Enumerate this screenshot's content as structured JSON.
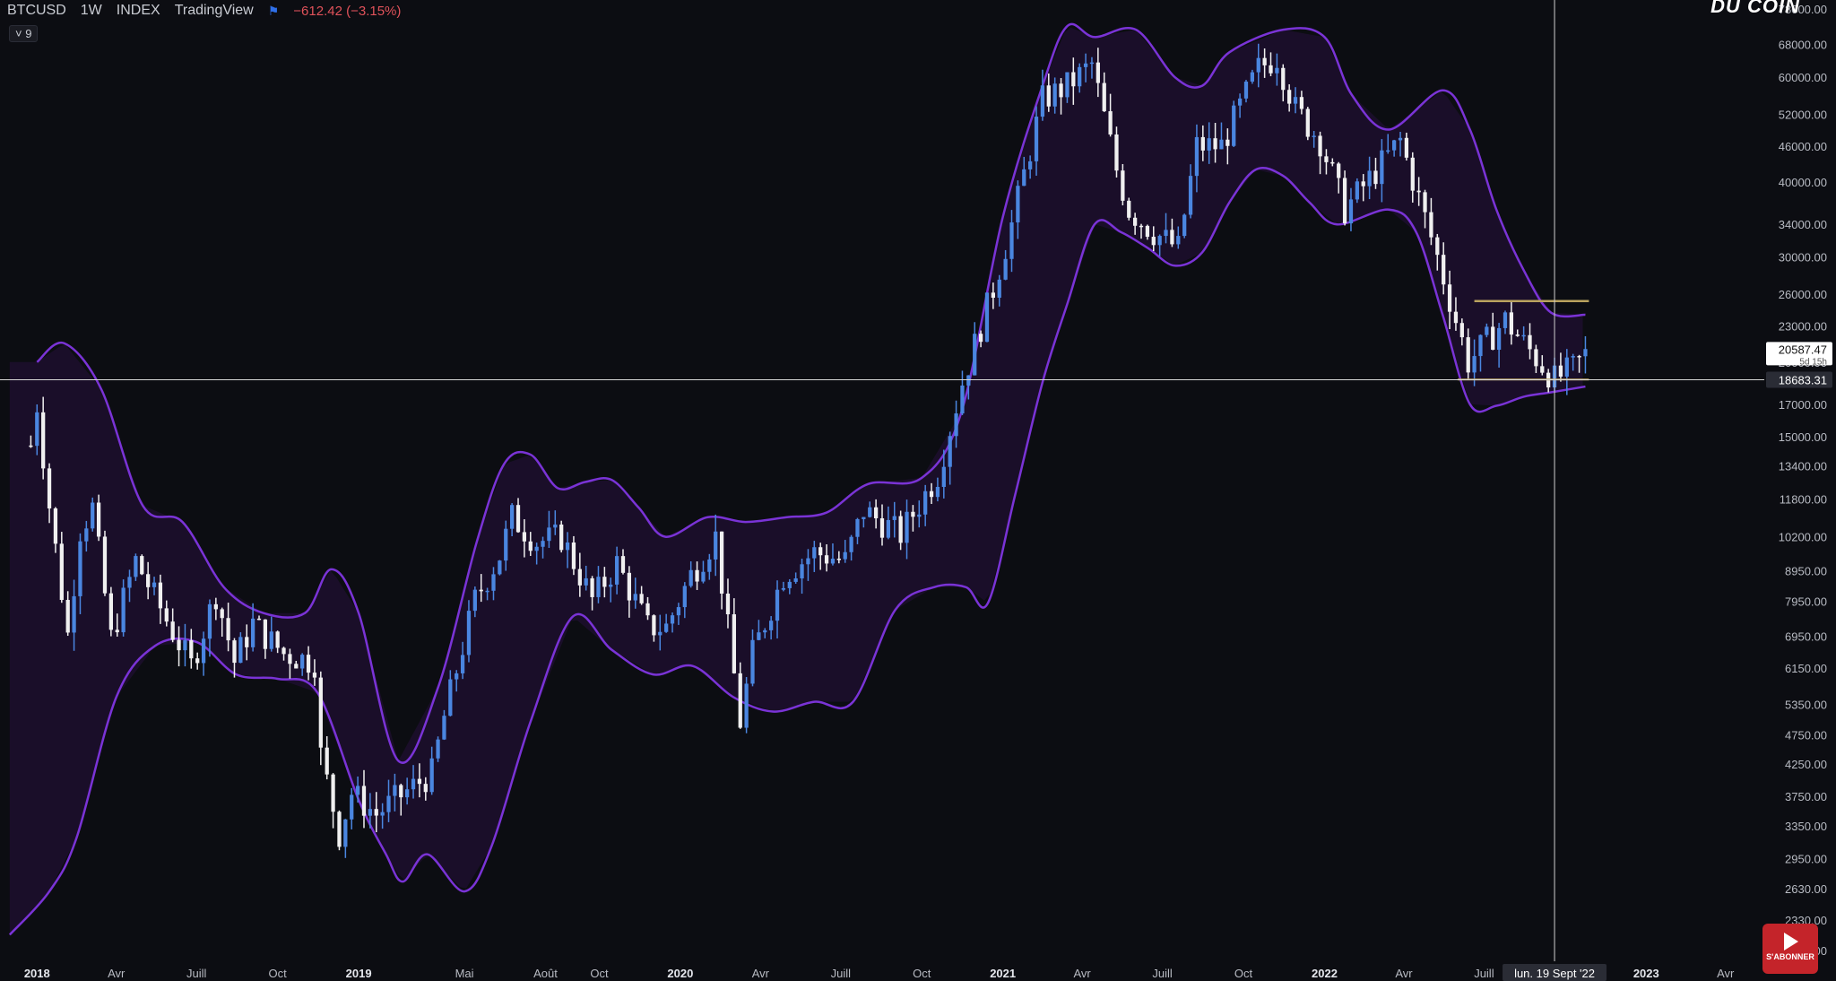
{
  "header": {
    "symbol": "BTCUSD",
    "interval": "1W",
    "exchange": "INDEX",
    "source": "TradingView",
    "change": "−612.42 (−3.15%)",
    "indicator_badge": "˅ 9"
  },
  "brand": "DU COIN",
  "youtube": {
    "label": "S'ABONNER"
  },
  "colors": {
    "background": "#0c0d12",
    "bull_candle": "#4a86e0",
    "bear_candle": "#f0f0f0",
    "band_line": "#7a33d6",
    "band_fill": "#1d0f2e",
    "horizontal_line": "#d8d8d8",
    "box_line": "#b9a25e"
  },
  "chart_data": {
    "type": "candlestick",
    "title": "BTCUSD 1W INDEX TradingView",
    "interval": "1W",
    "y_scale": "log",
    "ylim": [
      2000,
      78000
    ],
    "y_ticks": [
      "78000.00",
      "68000.00",
      "60000.00",
      "52000.00",
      "46000.00",
      "40000.00",
      "34000.00",
      "30000.00",
      "26000.00",
      "23000.00",
      "20000.00",
      "17000.00",
      "15000.00",
      "13400.00",
      "11800.00",
      "10200.00",
      "8950.00",
      "7950.00",
      "6950.00",
      "6150.00",
      "5350.00",
      "4750.00",
      "4250.00",
      "3750.00",
      "3350.00",
      "2950.00",
      "2630.00",
      "2330.00",
      "2070.00"
    ],
    "x_ticks": [
      "2018",
      "Avr",
      "Juill",
      "Oct",
      "2019",
      "Mai",
      "Août",
      "Oct",
      "2020",
      "Avr",
      "Juill",
      "Oct",
      "2021",
      "Avr",
      "Juill",
      "Oct",
      "2022",
      "Avr",
      "Juill",
      "2023",
      "Avr"
    ],
    "crosshair_date": "lun. 19 Sept '22",
    "last_price": "20587.47",
    "last_price_sub": "5d 15h",
    "crosshair_price": "18683.31",
    "horizontal_line_value": 18683.31,
    "box": {
      "top": 25300,
      "bottom": 18700,
      "from": "2022-06",
      "to": "2022-10"
    },
    "close_path": [
      [
        "2017-12-25",
        14500
      ],
      [
        "2018-01-01",
        17000
      ],
      [
        "2018-01-15",
        11500
      ],
      [
        "2018-02-05",
        7000
      ],
      [
        "2018-02-19",
        10500
      ],
      [
        "2018-03-05",
        11400
      ],
      [
        "2018-03-26",
        6900
      ],
      [
        "2018-04-23",
        9300
      ],
      [
        "2018-05-28",
        7400
      ],
      [
        "2018-06-25",
        6200
      ],
      [
        "2018-07-23",
        8200
      ],
      [
        "2018-08-13",
        6300
      ],
      [
        "2018-09-03",
        7300
      ],
      [
        "2018-10-08",
        6500
      ],
      [
        "2018-11-12",
        6300
      ],
      [
        "2018-11-19",
        4400
      ],
      [
        "2018-12-10",
        3250
      ],
      [
        "2018-12-24",
        3800
      ],
      [
        "2019-01-21",
        3500
      ],
      [
        "2019-02-11",
        3700
      ],
      [
        "2019-03-25",
        4100
      ],
      [
        "2019-04-08",
        5100
      ],
      [
        "2019-05-13",
        8000
      ],
      [
        "2019-06-10",
        9500
      ],
      [
        "2019-06-24",
        11000
      ],
      [
        "2019-07-22",
        10000
      ],
      [
        "2019-08-19",
        10200
      ],
      [
        "2019-09-23",
        8000
      ],
      [
        "2019-10-21",
        9200
      ],
      [
        "2019-11-25",
        7200
      ],
      [
        "2019-12-16",
        7200
      ],
      [
        "2020-01-13",
        8800
      ],
      [
        "2020-02-10",
        10200
      ],
      [
        "2020-03-09",
        5000
      ],
      [
        "2020-03-23",
        6500
      ],
      [
        "2020-04-27",
        8800
      ],
      [
        "2020-06-01",
        9600
      ],
      [
        "2020-07-06",
        9300
      ],
      [
        "2020-07-27",
        11300
      ],
      [
        "2020-09-07",
        10300
      ],
      [
        "2020-10-19",
        13000
      ],
      [
        "2020-11-16",
        18500
      ],
      [
        "2020-12-21",
        26500
      ],
      [
        "2021-01-11",
        34000
      ],
      [
        "2021-02-15",
        55000
      ],
      [
        "2021-03-15",
        58000
      ],
      [
        "2021-04-12",
        63000
      ],
      [
        "2021-05-10",
        42000
      ],
      [
        "2021-05-24",
        36000
      ],
      [
        "2021-06-21",
        33000
      ],
      [
        "2021-07-19",
        31000
      ],
      [
        "2021-08-09",
        46000
      ],
      [
        "2021-09-06",
        46000
      ],
      [
        "2021-10-18",
        62000
      ],
      [
        "2021-11-08",
        65000
      ],
      [
        "2021-11-29",
        53000
      ],
      [
        "2021-12-27",
        47000
      ],
      [
        "2022-01-24",
        36000
      ],
      [
        "2022-03-28",
        47000
      ],
      [
        "2022-05-09",
        30000
      ],
      [
        "2022-06-13",
        20000
      ],
      [
        "2022-07-25",
        23500
      ],
      [
        "2022-08-15",
        21500
      ],
      [
        "2022-09-19",
        18700
      ],
      [
        "2022-10-10",
        19500
      ],
      [
        "2022-10-24",
        20587.47
      ]
    ],
    "upper_band": [
      [
        "2018-01-01",
        20000
      ],
      [
        "2018-02-01",
        21500
      ],
      [
        "2018-03-15",
        18000
      ],
      [
        "2018-05-01",
        11500
      ],
      [
        "2018-06-15",
        10800
      ],
      [
        "2018-08-01",
        8400
      ],
      [
        "2018-09-15",
        7600
      ],
      [
        "2018-11-01",
        7600
      ],
      [
        "2018-12-01",
        9000
      ],
      [
        "2019-01-01",
        7600
      ],
      [
        "2019-02-15",
        4300
      ],
      [
        "2019-04-01",
        5700
      ],
      [
        "2019-05-15",
        10000
      ],
      [
        "2019-06-15",
        13500
      ],
      [
        "2019-07-15",
        14000
      ],
      [
        "2019-08-15",
        12300
      ],
      [
        "2019-09-15",
        12600
      ],
      [
        "2019-10-15",
        12700
      ],
      [
        "2019-11-15",
        11400
      ],
      [
        "2019-12-15",
        10200
      ],
      [
        "2020-02-01",
        11000
      ],
      [
        "2020-03-15",
        10800
      ],
      [
        "2020-05-01",
        11000
      ],
      [
        "2020-06-15",
        11200
      ],
      [
        "2020-08-01",
        12500
      ],
      [
        "2020-10-01",
        12800
      ],
      [
        "2020-11-15",
        16500
      ],
      [
        "2021-01-01",
        35000
      ],
      [
        "2021-02-15",
        58000
      ],
      [
        "2021-03-15",
        73000
      ],
      [
        "2021-04-15",
        70000
      ],
      [
        "2021-06-01",
        72000
      ],
      [
        "2021-07-15",
        60000
      ],
      [
        "2021-08-15",
        58000
      ],
      [
        "2021-09-15",
        66000
      ],
      [
        "2021-11-15",
        72000
      ],
      [
        "2022-01-01",
        70000
      ],
      [
        "2022-02-01",
        56000
      ],
      [
        "2022-03-15",
        49000
      ],
      [
        "2022-05-15",
        57000
      ],
      [
        "2022-06-15",
        49000
      ],
      [
        "2022-07-15",
        36000
      ],
      [
        "2022-08-15",
        28500
      ],
      [
        "2022-09-15",
        24200
      ],
      [
        "2022-10-24",
        24000
      ]
    ],
    "lower_band": [
      [
        "2017-12-01",
        2200
      ],
      [
        "2018-01-15",
        2600
      ],
      [
        "2018-02-15",
        3200
      ],
      [
        "2018-04-01",
        5500
      ],
      [
        "2018-05-15",
        6700
      ],
      [
        "2018-07-01",
        6800
      ],
      [
        "2018-08-15",
        6000
      ],
      [
        "2018-10-01",
        5900
      ],
      [
        "2018-11-15",
        5600
      ],
      [
        "2019-01-01",
        3700
      ],
      [
        "2019-02-01",
        3000
      ],
      [
        "2019-02-20",
        2700
      ],
      [
        "2019-03-20",
        3000
      ],
      [
        "2019-05-01",
        2600
      ],
      [
        "2019-06-01",
        3100
      ],
      [
        "2019-07-15",
        5000
      ],
      [
        "2019-09-01",
        7500
      ],
      [
        "2019-10-15",
        6600
      ],
      [
        "2019-12-01",
        6000
      ],
      [
        "2020-01-15",
        6200
      ],
      [
        "2020-03-01",
        5500
      ],
      [
        "2020-04-15",
        5200
      ],
      [
        "2020-06-01",
        5400
      ],
      [
        "2020-07-15",
        5400
      ],
      [
        "2020-09-01",
        7700
      ],
      [
        "2020-10-15",
        8400
      ],
      [
        "2020-11-20",
        8400
      ],
      [
        "2020-12-15",
        7900
      ],
      [
        "2021-01-15",
        12000
      ],
      [
        "2021-02-15",
        18500
      ],
      [
        "2021-03-15",
        25000
      ],
      [
        "2021-04-15",
        34000
      ],
      [
        "2021-05-15",
        33000
      ],
      [
        "2021-06-15",
        31000
      ],
      [
        "2021-07-15",
        29000
      ],
      [
        "2021-08-15",
        30500
      ],
      [
        "2021-09-15",
        37000
      ],
      [
        "2021-10-15",
        42000
      ],
      [
        "2021-11-15",
        41000
      ],
      [
        "2021-12-15",
        37000
      ],
      [
        "2022-01-15",
        34000
      ],
      [
        "2022-03-15",
        36000
      ],
      [
        "2022-04-15",
        33000
      ],
      [
        "2022-05-15",
        24000
      ],
      [
        "2022-06-15",
        17000
      ],
      [
        "2022-07-15",
        16900
      ],
      [
        "2022-08-15",
        17500
      ],
      [
        "2022-09-15",
        17800
      ],
      [
        "2022-10-24",
        18200
      ]
    ]
  }
}
